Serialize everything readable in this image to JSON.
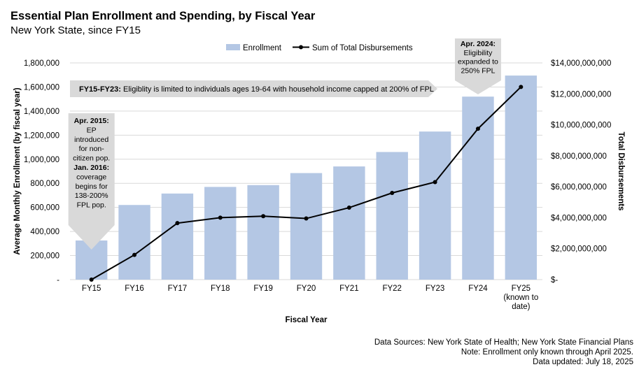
{
  "title": "Essential Plan Enrollment and Spending, by Fiscal Year",
  "subtitle": "New York State, since FY15",
  "legend": {
    "enrollment": "Enrollment",
    "disbursements": "Sum of Total Disbursements"
  },
  "colors": {
    "bar": "#b4c7e4",
    "line": "#000000",
    "callout": "#d9d9d9",
    "grid": "#d9d9d9"
  },
  "callouts": {
    "fy15_fy23": {
      "bold": "FY15-FY23:",
      "text": " Eligiblity is limited to individuals ages 19-64 with household income capped at 200% of FPL"
    },
    "apr2015": {
      "lines": [
        {
          "text": "Apr. 2015:",
          "bold": true
        },
        {
          "text": "EP",
          "bold": false
        },
        {
          "text": "introduced",
          "bold": false
        },
        {
          "text": "for non-",
          "bold": false
        },
        {
          "text": "citizen pop.",
          "bold": false
        },
        {
          "text": "Jan. 2016:",
          "bold": true
        },
        {
          "text": "coverage",
          "bold": false
        },
        {
          "text": "begins for",
          "bold": false
        },
        {
          "text": "138-200%",
          "bold": false
        },
        {
          "text": "FPL pop.",
          "bold": false
        }
      ]
    },
    "apr2024": {
      "lines": [
        {
          "text": "Apr. 2024:",
          "bold": true
        },
        {
          "text": "Eligibility",
          "bold": false
        },
        {
          "text": "expanded to",
          "bold": false
        },
        {
          "text": "250% FPL",
          "bold": false
        }
      ]
    }
  },
  "footnotes": [
    "Data Sources: New York State of Health; New York State Financial Plans",
    "Note: Enrollment only known through April 2025.",
    "Data updated: July 18, 2025"
  ],
  "chart_data": {
    "type": "bar",
    "title": "Essential Plan Enrollment and Spending, by Fiscal Year",
    "subtitle": "New York State, since FY15",
    "xlabel": "Fiscal Year",
    "ylabel": "Average Monthly Enrollment (by fiscal year)",
    "y2label": "Total Disbursements",
    "categories": [
      "FY15",
      "FY16",
      "FY17",
      "FY18",
      "FY19",
      "FY20",
      "FY21",
      "FY22",
      "FY23",
      "FY24",
      "FY25 (known to date)"
    ],
    "ylim": [
      0,
      1800000
    ],
    "y2lim": [
      0,
      14000000000
    ],
    "y_ticks": [
      {
        "value": 0,
        "label": "-"
      },
      {
        "value": 200000,
        "label": "200,000"
      },
      {
        "value": 400000,
        "label": "400,000"
      },
      {
        "value": 600000,
        "label": "600,000"
      },
      {
        "value": 800000,
        "label": "800,000"
      },
      {
        "value": 1000000,
        "label": "1,000,000"
      },
      {
        "value": 1200000,
        "label": "1,200,000"
      },
      {
        "value": 1400000,
        "label": "1,400,000"
      },
      {
        "value": 1600000,
        "label": "1,600,000"
      },
      {
        "value": 1800000,
        "label": "1,800,000"
      }
    ],
    "y2_ticks": [
      {
        "value": 0,
        "label": "$-"
      },
      {
        "value": 2000000000,
        "label": "$2,000,000,000"
      },
      {
        "value": 4000000000,
        "label": "$4,000,000,000"
      },
      {
        "value": 6000000000,
        "label": "$6,000,000,000"
      },
      {
        "value": 8000000000,
        "label": "$8,000,000,000"
      },
      {
        "value": 10000000000,
        "label": "$10,000,000,000"
      },
      {
        "value": 12000000000,
        "label": "$12,000,000,000"
      },
      {
        "value": 14000000000,
        "label": "$14,000,000,000"
      }
    ],
    "grid": true,
    "legend_position": "top",
    "series": [
      {
        "name": "Enrollment",
        "type": "bar",
        "axis": "left",
        "values": [
          325000,
          620000,
          715000,
          770000,
          785000,
          885000,
          940000,
          1060000,
          1230000,
          1520000,
          1695000
        ]
      },
      {
        "name": "Sum of Total Disbursements",
        "type": "line",
        "axis": "right",
        "values": [
          0,
          1600000000,
          3650000000,
          4000000000,
          4100000000,
          3950000000,
          4650000000,
          5600000000,
          6300000000,
          9750000000,
          12450000000
        ]
      }
    ]
  }
}
